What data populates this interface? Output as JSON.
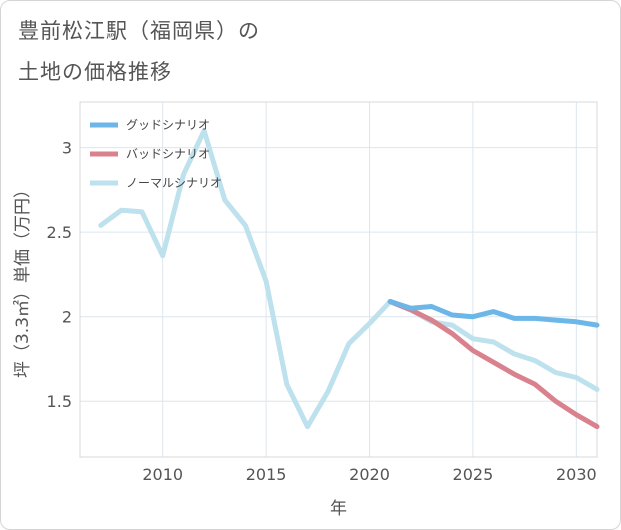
{
  "title_line1": "豊前松江駅（福岡県）の",
  "title_line2": "土地の価格推移",
  "chart_data": {
    "type": "line",
    "xlabel": "年",
    "ylabel": "坪（3.3㎡）単価（万円）",
    "xlim": [
      2006,
      2031
    ],
    "ylim": [
      1.17,
      3.27
    ],
    "xticks": [
      2010,
      2015,
      2020,
      2025,
      2030
    ],
    "yticks": [
      1.5,
      2,
      2.5,
      3
    ],
    "ytick_labels": [
      "1.5",
      "2",
      "2.5",
      "3"
    ],
    "grid": true,
    "legend_position": "top-left",
    "series": [
      {
        "name": "グッドシナリオ",
        "color": "#6cb6e8",
        "x": [
          2021,
          2022,
          2023,
          2024,
          2025,
          2026,
          2027,
          2028,
          2029,
          2030,
          2031
        ],
        "y": [
          2.09,
          2.05,
          2.06,
          2.01,
          2.0,
          2.03,
          1.99,
          1.99,
          1.98,
          1.97,
          1.95
        ]
      },
      {
        "name": "バッドシナリオ",
        "color": "#d9828e",
        "x": [
          2021,
          2022,
          2023,
          2024,
          2025,
          2026,
          2027,
          2028,
          2029,
          2030,
          2031
        ],
        "y": [
          2.09,
          2.04,
          1.98,
          1.9,
          1.8,
          1.73,
          1.66,
          1.6,
          1.5,
          1.42,
          1.35
        ]
      },
      {
        "name": "ノーマルシナリオ",
        "color": "#bde1ed",
        "x": [
          2007,
          2008,
          2009,
          2010,
          2011,
          2012,
          2013,
          2014,
          2015,
          2016,
          2017,
          2018,
          2019,
          2020,
          2021,
          2022,
          2023,
          2024,
          2025,
          2026,
          2027,
          2028,
          2029,
          2030,
          2031
        ],
        "y": [
          2.54,
          2.63,
          2.62,
          2.36,
          2.84,
          3.1,
          2.69,
          2.54,
          2.21,
          1.6,
          1.35,
          1.56,
          1.84,
          1.96,
          2.09,
          2.04,
          1.97,
          1.95,
          1.87,
          1.85,
          1.78,
          1.74,
          1.67,
          1.64,
          1.57
        ]
      }
    ]
  }
}
